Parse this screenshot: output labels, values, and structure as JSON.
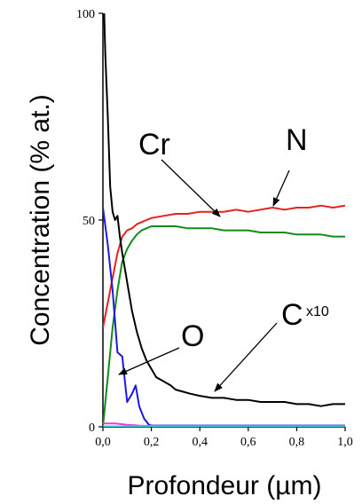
{
  "chart_data": {
    "type": "line",
    "xlabel": "Profondeur (µm)",
    "ylabel": "Concentration (% at.)",
    "xlim": [
      0.0,
      1.0
    ],
    "ylim": [
      0,
      100
    ],
    "x_ticks": [
      "0,0",
      "0,2",
      "0,4",
      "0,6",
      "0,8",
      "1,0"
    ],
    "y_ticks": [
      "0",
      "50",
      "100"
    ],
    "series": [
      {
        "name": "N",
        "color": "#e8201c",
        "x": [
          0.0,
          0.02,
          0.04,
          0.06,
          0.08,
          0.1,
          0.12,
          0.14,
          0.16,
          0.18,
          0.2,
          0.25,
          0.3,
          0.35,
          0.4,
          0.45,
          0.5,
          0.55,
          0.6,
          0.65,
          0.7,
          0.75,
          0.8,
          0.85,
          0.9,
          0.95,
          1.0
        ],
        "y": [
          24,
          30,
          36,
          42,
          46,
          47.5,
          48,
          49,
          49.5,
          50,
          50.5,
          51,
          51.5,
          51.5,
          52,
          52,
          52,
          52.5,
          52,
          52.5,
          53,
          52.5,
          53,
          53,
          53.5,
          53,
          53.5
        ]
      },
      {
        "name": "Cr",
        "color": "#118c1a",
        "x": [
          0.0,
          0.02,
          0.04,
          0.06,
          0.08,
          0.1,
          0.12,
          0.14,
          0.16,
          0.18,
          0.2,
          0.25,
          0.3,
          0.35,
          0.4,
          0.45,
          0.5,
          0.55,
          0.6,
          0.65,
          0.7,
          0.75,
          0.8,
          0.85,
          0.9,
          0.95,
          1.0
        ],
        "y": [
          0,
          12,
          24,
          33,
          40,
          43,
          45,
          46.5,
          47.5,
          48,
          48.5,
          48.5,
          48.5,
          48,
          48,
          48,
          47.5,
          47.5,
          47.5,
          47,
          47,
          47,
          46.5,
          46.5,
          46.5,
          46,
          46
        ]
      },
      {
        "name": "O",
        "color": "#1a1ae0",
        "x": [
          0.0,
          0.02,
          0.04,
          0.06,
          0.08,
          0.1,
          0.12,
          0.135,
          0.15,
          0.17,
          0.19,
          0.2,
          0.3,
          0.4,
          0.5,
          0.6,
          0.7,
          0.8,
          0.9,
          1.0
        ],
        "y": [
          53,
          44,
          33,
          18,
          17,
          6,
          8,
          10,
          5,
          2,
          0.5,
          0.3,
          0.3,
          0.3,
          0.3,
          0.3,
          0.3,
          0.3,
          0.3,
          0.3
        ]
      },
      {
        "name": "C",
        "label": "x10",
        "color": "#000000",
        "x": [
          0.005,
          0.01,
          0.02,
          0.03,
          0.04,
          0.05,
          0.06,
          0.07,
          0.08,
          0.1,
          0.12,
          0.14,
          0.16,
          0.18,
          0.2,
          0.22,
          0.25,
          0.28,
          0.3,
          0.33,
          0.36,
          0.4,
          0.45,
          0.5,
          0.55,
          0.6,
          0.65,
          0.7,
          0.75,
          0.8,
          0.85,
          0.9,
          0.95,
          1.0
        ],
        "y": [
          100,
          90,
          75,
          58,
          52,
          50,
          51,
          46,
          42,
          35,
          28,
          23,
          19,
          16,
          14,
          12,
          11,
          10,
          9,
          8.5,
          8,
          7.5,
          7,
          7,
          6.5,
          6.5,
          6,
          6,
          6,
          5.5,
          5.5,
          5,
          5.5,
          5.5
        ]
      },
      {
        "name": "",
        "color": "#e040e0",
        "x": [
          0.0,
          0.05,
          0.1,
          0.15,
          0.2,
          0.3,
          0.4,
          0.5,
          0.6,
          0.7,
          0.8,
          0.9,
          1.0
        ],
        "y": [
          0.8,
          0.8,
          0.5,
          0.3,
          0.2,
          0.2,
          0.2,
          0.2,
          0.2,
          0.2,
          0.2,
          0.2,
          0.2
        ]
      },
      {
        "name": "",
        "color": "#40d0e0",
        "x": [
          0.0,
          0.05,
          0.1,
          0.15,
          0.2,
          0.3,
          0.4,
          0.5,
          0.6,
          0.7,
          0.8,
          0.9,
          1.0
        ],
        "y": [
          0.1,
          0.1,
          0.1,
          0.1,
          0.1,
          0.1,
          0.1,
          0.1,
          0.1,
          0.1,
          0.1,
          0.1,
          0.1
        ]
      }
    ],
    "annotations": [
      "N",
      "Cr",
      "O",
      "C",
      "x10"
    ],
    "grid": false,
    "legend": "none"
  }
}
